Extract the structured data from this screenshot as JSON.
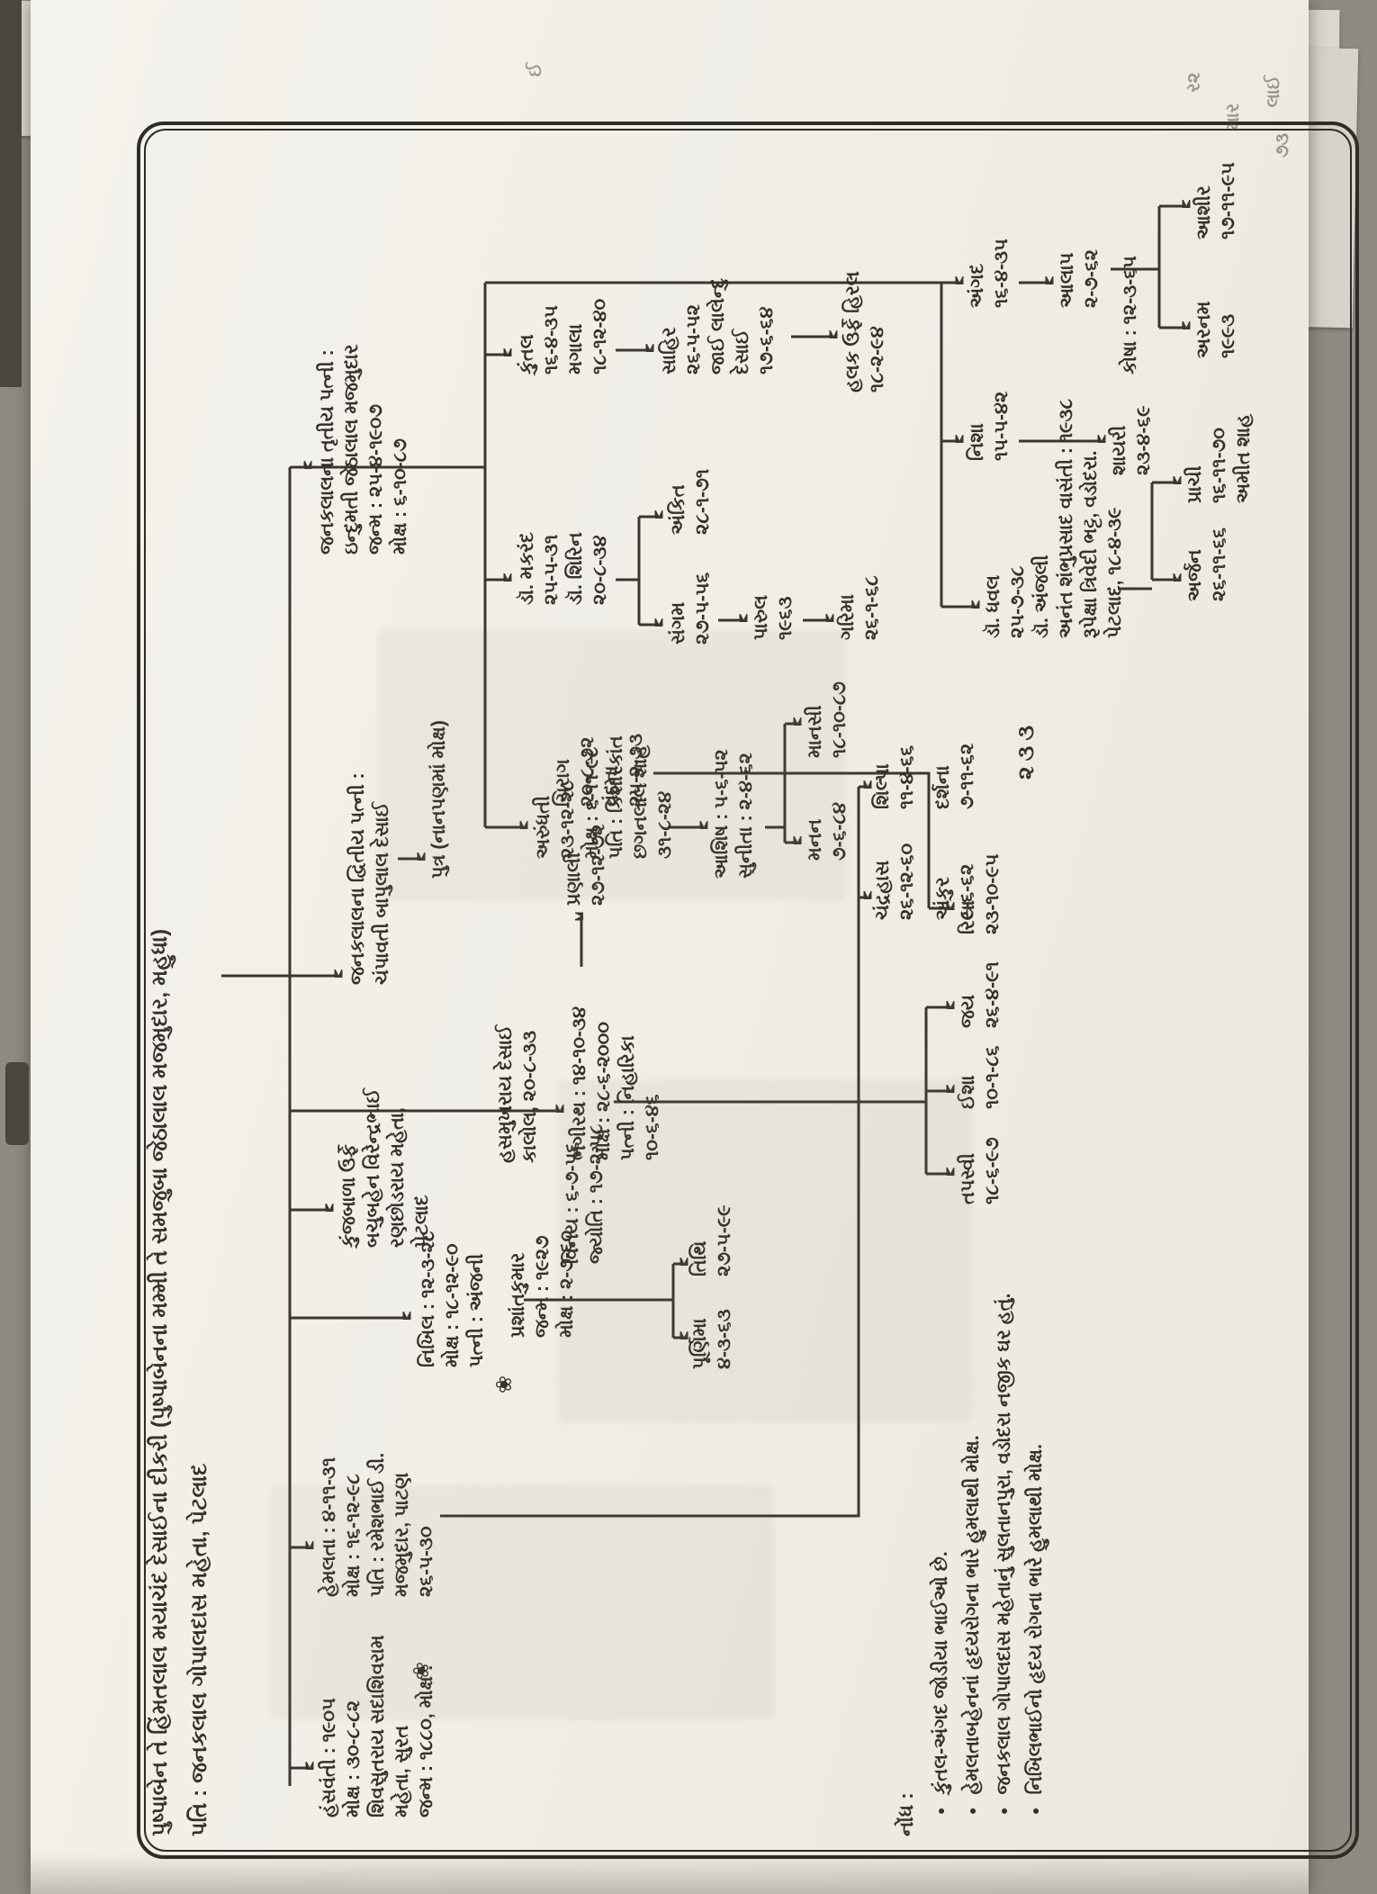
{
  "title": {
    "line1": "પુષ્પાબેન તે હિંમતલાલ મયાચંદ દેસાઈના દીકરી (પુષ્પાબેનના મમ્મી તે સમજુબા જેઠાલાલ મજમુદાર, મહુધા)",
    "line2": "પતિ : જનકલાલ ગોપાલદાસ મહેતા, પેટલાદ"
  },
  "nodes": {
    "hansvanti": {
      "lines": [
        "હંસવંતી : ૧૯૦૫",
        "મોક્ષ : ૩૦-૮-૮૨",
        "શિવસુતરાય સદાશિવરામ",
        "મહેતા, સુરત",
        "જન્મ : ૧૮૮૦, મોક્ષ :"
      ]
    },
    "hemlata": {
      "lines": [
        "હેમલતા : ૪-૧૧-૩૧",
        "મોક્ષ : ૧૬-૧૨-૯૮",
        "પતિ : રમેશભાઈ ડી.",
        "મજમુદાર, પાટણ",
        "૨૬-૫-૩૦"
      ]
    },
    "nikhil": {
      "lines": [
        "નિખિલ : ૧૨-૩-૨૮",
        "મોક્ષ : ૧૮-૧૨-૯૦",
        "પત્ની : અંજની"
      ]
    },
    "hasmukhrai": {
      "lines": [
        "હસમુખરાય દેસાઈ",
        "કાલોલ, ૨૦-૮-૩૩"
      ]
    },
    "prashant": {
      "lines": [
        "પ્રશાંતકુમાર",
        "જન્મ : ૧૯૨૭",
        "મોક્ષ : ૨-૭-૬૦"
      ]
    },
    "kunjbala": {
      "lines": [
        "કુંજબાળા ઉર્ફે",
        "બચુબહેન વિરેન્દ્રભાઈ",
        "રણછોડરાય મહેતા,",
        "પેટલાદ"
      ]
    },
    "bhagirath": {
      "lines": [
        "ભગીરથ : ૧૪-૧૦-૩૪",
        "મોક્ષ : ૨૮-૬-૨૦૦૦",
        "પત્ની : નિહારિકા",
        "૧૦-૬-૪૬"
      ]
    },
    "wife2": {
      "lines": [
        "જનકલાલના દ્વિતીય પત્ની :",
        "ચંપાવતી બાપુલાલ દેસાઈ"
      ]
    },
    "putra": {
      "lines": [
        "પુત્ર (નાનપણમાં મોક્ષ)"
      ]
    },
    "wife3": {
      "lines": [
        "જનકલાલના તૃતીય પત્ની :",
        "ઇન્દુમતી જેઠાલાલ મજમુદાર",
        "જન્મ : ૨૫-૪-૧૯૦૭",
        "મોક્ષ : ૬-૧૦-૮૭"
      ]
    },
    "kuntal": {
      "lines": [
        "કુંતલ",
        "૧૬-૪-૩૫",
        "મગાલા",
        "૧૮-૧૨-૪૦"
      ]
    },
    "makarand": {
      "lines": [
        "ડૉ. મકરંદ",
        "૨૫-૫-૩૧",
        "ડૉ. શિરિન",
        "૨૦-૮-૩૪"
      ]
    },
    "arundhati": {
      "lines": [
        "અરુંધતી",
        "૨૩-૧૨-૨૮",
        "મોક્ષ : ૬-૧૧-૯૮",
        "પતિ : કિશોરકાંત",
        "છગનલાલ શાહ",
        "૩૧-૮-૨૪"
      ]
    },
    "sahir": {
      "lines": [
        "સાહિર",
        "૨૬-૫-૫૨",
        "જાઈ લાલેન્દુ",
        "દેસાઈ",
        "૧૭-૬-૬૪"
      ]
    },
    "halak": {
      "lines": [
        "હલક ઉર્ફે હિરલ",
        "૧૮-૨-૯૪"
      ]
    },
    "sangam": {
      "lines": [
        "સંગમ",
        "૨૭-૫-૫૬"
      ]
    },
    "ankit": {
      "lines": [
        "અંકિત",
        "૨૮-૧-૭૧"
      ]
    },
    "parul": {
      "lines": [
        "પારુલ",
        "૧૯૬૩"
      ]
    },
    "garima": {
      "lines": [
        "ગરિમા",
        "૨૬-૧-૬૮"
      ]
    },
    "ashish": {
      "lines": [
        "આશિષ : ૫-૬-૫૨",
        "સુનીતા : ૨-૪-૬૨"
      ]
    },
    "manan": {
      "lines": [
        "મનન",
        "૭-૬-૮૪"
      ]
    },
    "mansi": {
      "lines": [
        "માનસી",
        "૧૮-૧૦-૮૭"
      ]
    },
    "dhaval": {
      "lines": [
        "ડૉ. ધવલ",
        "૨૫-૭-૩૮",
        "ડૉ. અંજલી",
        "અનંત શંભુપ્રસાદ  વાસંતી : ૧૯૩૮",
        "રૂપેક્ષા ત્રિવેદી  ભટ્ટ, વડોદરા.",
        "પેટલાદ, ૧૮-૪-૩૯"
      ]
    },
    "nisha": {
      "lines": [
        "નિશા",
        "૧૫-૫-૪૨"
      ]
    },
    "angad": {
      "lines": [
        "અંગદ",
        "૧૬-૪-૩૫"
      ]
    },
    "arjan": {
      "lines": [
        "અર્જન",
        "૨૬-૧૧-૬૬"
      ]
    },
    "prachi": {
      "lines": [
        "પ્રાચી",
        "૧૬-૧૧-૭૦",
        "અમીત શાહ"
      ]
    },
    "aalap": {
      "lines": [
        "આલાપ",
        "૨-૭-૬૨"
      ]
    },
    "shayri": {
      "lines": [
        "શાયરી",
        "૨૩-૪-૬૯"
      ]
    },
    "kosha": {
      "lines": [
        "કોષા : ૧૨-૩-૬૫"
      ]
    },
    "arnam": {
      "lines": [
        "અરનમ",
        "૧૯૯૩"
      ]
    },
    "aashir": {
      "lines": [
        "આશીર",
        "૧૭-૧૧-૯૫"
      ]
    },
    "vinay": {
      "lines": [
        "વિનય : ૬-૭-૫૬",
        "જ્યોતિ : ૧૭-૨-૫૮"
      ]
    },
    "pranali": {
      "lines": [
        "પ્રણાલી",
        "૨૭-૧૨-૭૨"
      ]
    },
    "chirag": {
      "lines": [
        "ચિરાગ",
        "૨૦-૮-૭૨",
        "વંદના",
        "૨૫-૨-૭૩"
      ]
    },
    "purnima": {
      "lines": [
        "પૂર્ણિમા",
        "૪-૩-૬૩"
      ]
    },
    "tithi": {
      "lines": [
        "તિથિ",
        "૨૭-૫-૯૯"
      ]
    },
    "chandrahas": {
      "lines": [
        "ચંદ્રહાસ",
        "૨૬-૧૨-૬૦"
      ]
    },
    "shilpa": {
      "lines": [
        "શિલ્પા",
        "૧૧-૪-૬૬"
      ]
    },
    "ankur": {
      "lines": [
        "અંકુર",
        "૯-૬-૬૨"
      ]
    },
    "darshana": {
      "lines": [
        "દર્શના",
        "૭-૧૧-૬૨"
      ]
    },
    "tapasvi": {
      "lines": [
        "તપસ્વી",
        "૧૮-૬-૯૭"
      ]
    },
    "isha": {
      "lines": [
        "ઈશા",
        "૧૦-૧-૮૬"
      ]
    },
    "jay": {
      "lines": [
        "જય",
        "૨૬-૪-૯૧"
      ]
    },
    "riya": {
      "lines": [
        "રિયા",
        "૨૩-૧૦-૯૫"
      ]
    }
  },
  "notes": {
    "header": "નોંધ :",
    "items": [
      "કુંતલ-અંગદ જોડીયા ભાઈઓ છે.",
      "હેમલતાબહેનનાં હૃદયરોગના ભારે હુમલાથી મોક્ષ.",
      "જનકલાલ ગોપાલદાસ મહેતાનું સુલતાનપુરા, વડોદરા નજીક ઘર હતું.",
      "નિખિલભાઈનો હૃદય રોગના ભારે હુમલાથી મોક્ષ."
    ]
  },
  "page": {
    "number": "૨૩૩",
    "flower": "❀"
  },
  "artifacts": {
    "fragments": [
      "ઈ",
      "ર૨",
      "માર",
      "લાઈ",
      "૭૩"
    ]
  }
}
